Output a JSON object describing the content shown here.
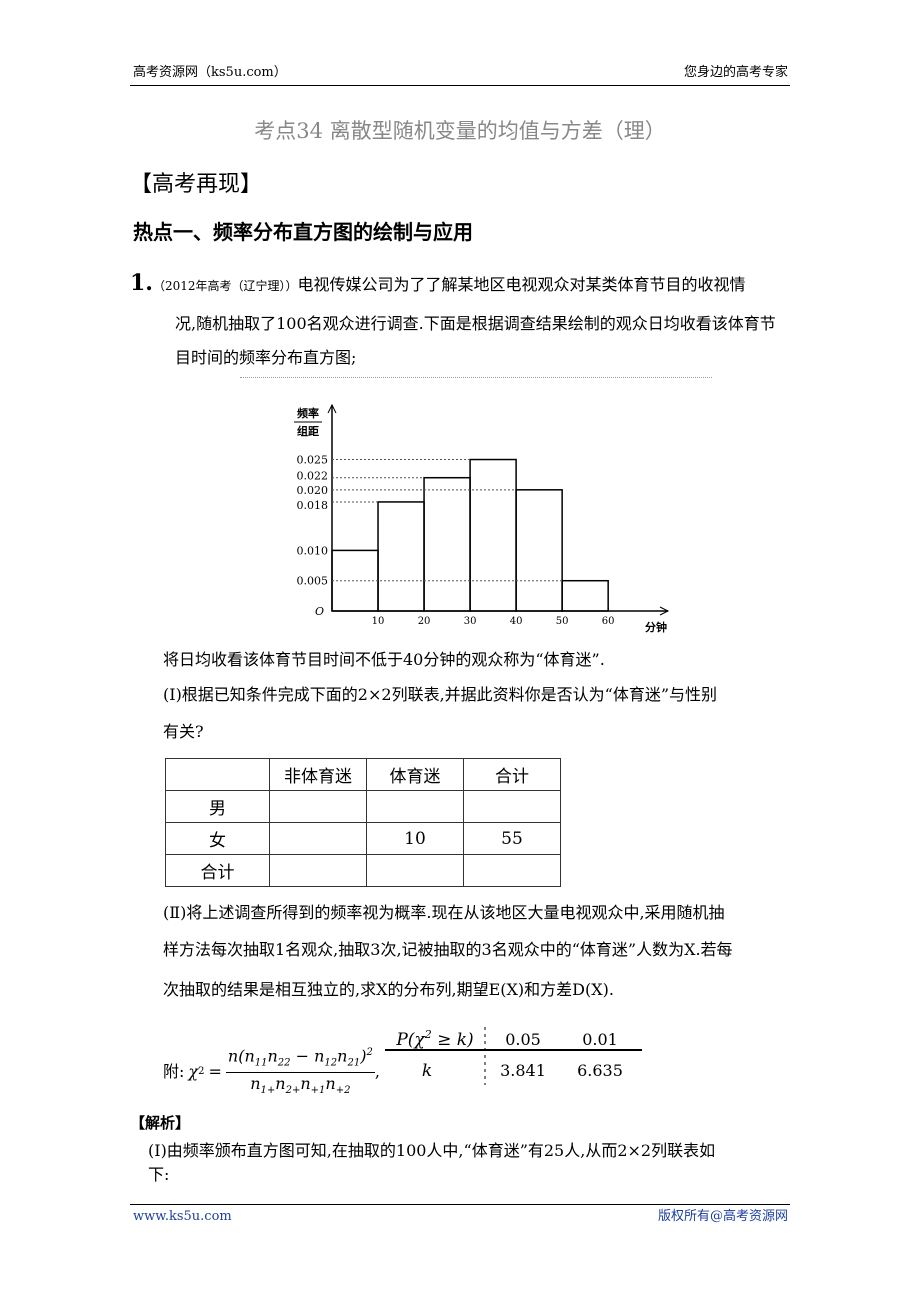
{
  "header": {
    "left": "高考资源网（ks5u.com）",
    "right": "您身边的高考专家"
  },
  "title": "考点34  离散型随机变量的均值与方差（理）",
  "section": "【高考再现】",
  "subsection": "热点一、频率分布直方图的绘制与应用",
  "problem": {
    "number": "1.",
    "source": "（2012年高考（辽宁理））",
    "lines": [
      "电视传媒公司为了了解某地区电视观众对某类体育节目的收视情",
      "况,随机抽取了100名观众进行调查.下面是根据调查结果绘制的观众日均收看该体育节",
      "目时间的频率分布直方图;"
    ],
    "after_chart": "将日均收看该体育节目时间不低于40分钟的观众称为“体育迷”.",
    "part1": [
      "(Ⅰ)根据已知条件完成下面的2×2列联表,并据此资料你是否认为“体育迷”与性别",
      "有关?"
    ],
    "table": {
      "columns": [
        "非体育迷",
        "体育迷",
        "合计"
      ],
      "rows": [
        {
          "label": "男"
        },
        {
          "label": "女",
          "values": [
            null,
            10,
            55
          ]
        },
        {
          "label": "合计"
        }
      ]
    },
    "part2": [
      "(Ⅱ)将上述调查所得到的频率视为概率.现在从该地区大量电视观众中,采用随机抽",
      "样方法每次抽取1名观众,抽取3次,记被抽取的3名观众中的“体育迷”人数为X.若每",
      "次抽取的结果是相互独立的,求X的分布列,期望E(X)和方差D(X)."
    ],
    "appendix": {
      "label": "附:",
      "formula": {
        "lhs": "χ",
        "lhs_sup": "2",
        "eq": "=",
        "numerator": [
          {
            "text": "n(n",
            "sub": "11"
          },
          {
            "text": "n",
            "sub": "22"
          },
          {
            "text": " − n",
            "sub": "12"
          },
          {
            "text": "n",
            "sub": "21"
          },
          {
            "text": ")"
          }
        ],
        "numerator_sup": "2",
        "denominator": [
          {
            "text": "n",
            "sub": "1+"
          },
          {
            "text": "n",
            "sub": "2+"
          },
          {
            "text": "n",
            "sub": "+1"
          },
          {
            "text": "n",
            "sub": "+2"
          }
        ],
        "tail": ","
      },
      "critical": {
        "head": {
          "text": "P(χ",
          "sup": "2",
          "tail": " ≥ k)"
        },
        "row_label": "k",
        "p": [
          0.05,
          0.01
        ],
        "k": [
          3.841,
          6.635
        ]
      }
    }
  },
  "solution": {
    "heading": "【解析】",
    "lines": [
      "(Ⅰ)由频率颁布直方图可知,在抽取的100人中,“体育迷”有25人,从而2×2列联表如",
      "下:"
    ]
  },
  "footer": {
    "left": "www.ks5u.com",
    "right": "版权所有@高考资源网"
  },
  "chart_data": {
    "type": "histogram",
    "y_label_top": "频率",
    "y_label_bottom": "组距",
    "x_label": "分钟",
    "origin_label": "O",
    "bins": [
      0,
      10,
      20,
      30,
      40,
      50,
      60
    ],
    "values": [
      0.01,
      0.018,
      0.022,
      0.025,
      0.02,
      0.005
    ],
    "xlim": [
      0,
      73
    ],
    "ylim": [
      0,
      0.034
    ],
    "xticks": [
      10,
      20,
      30,
      40,
      50,
      60
    ],
    "yticks": [
      0.005,
      {
        "value": 0.01,
        "label": "0.010"
      },
      0.018,
      {
        "value": 0.02,
        "label": "0.020"
      },
      0.022,
      0.025
    ],
    "color": "#000000",
    "grid": "dotted"
  }
}
